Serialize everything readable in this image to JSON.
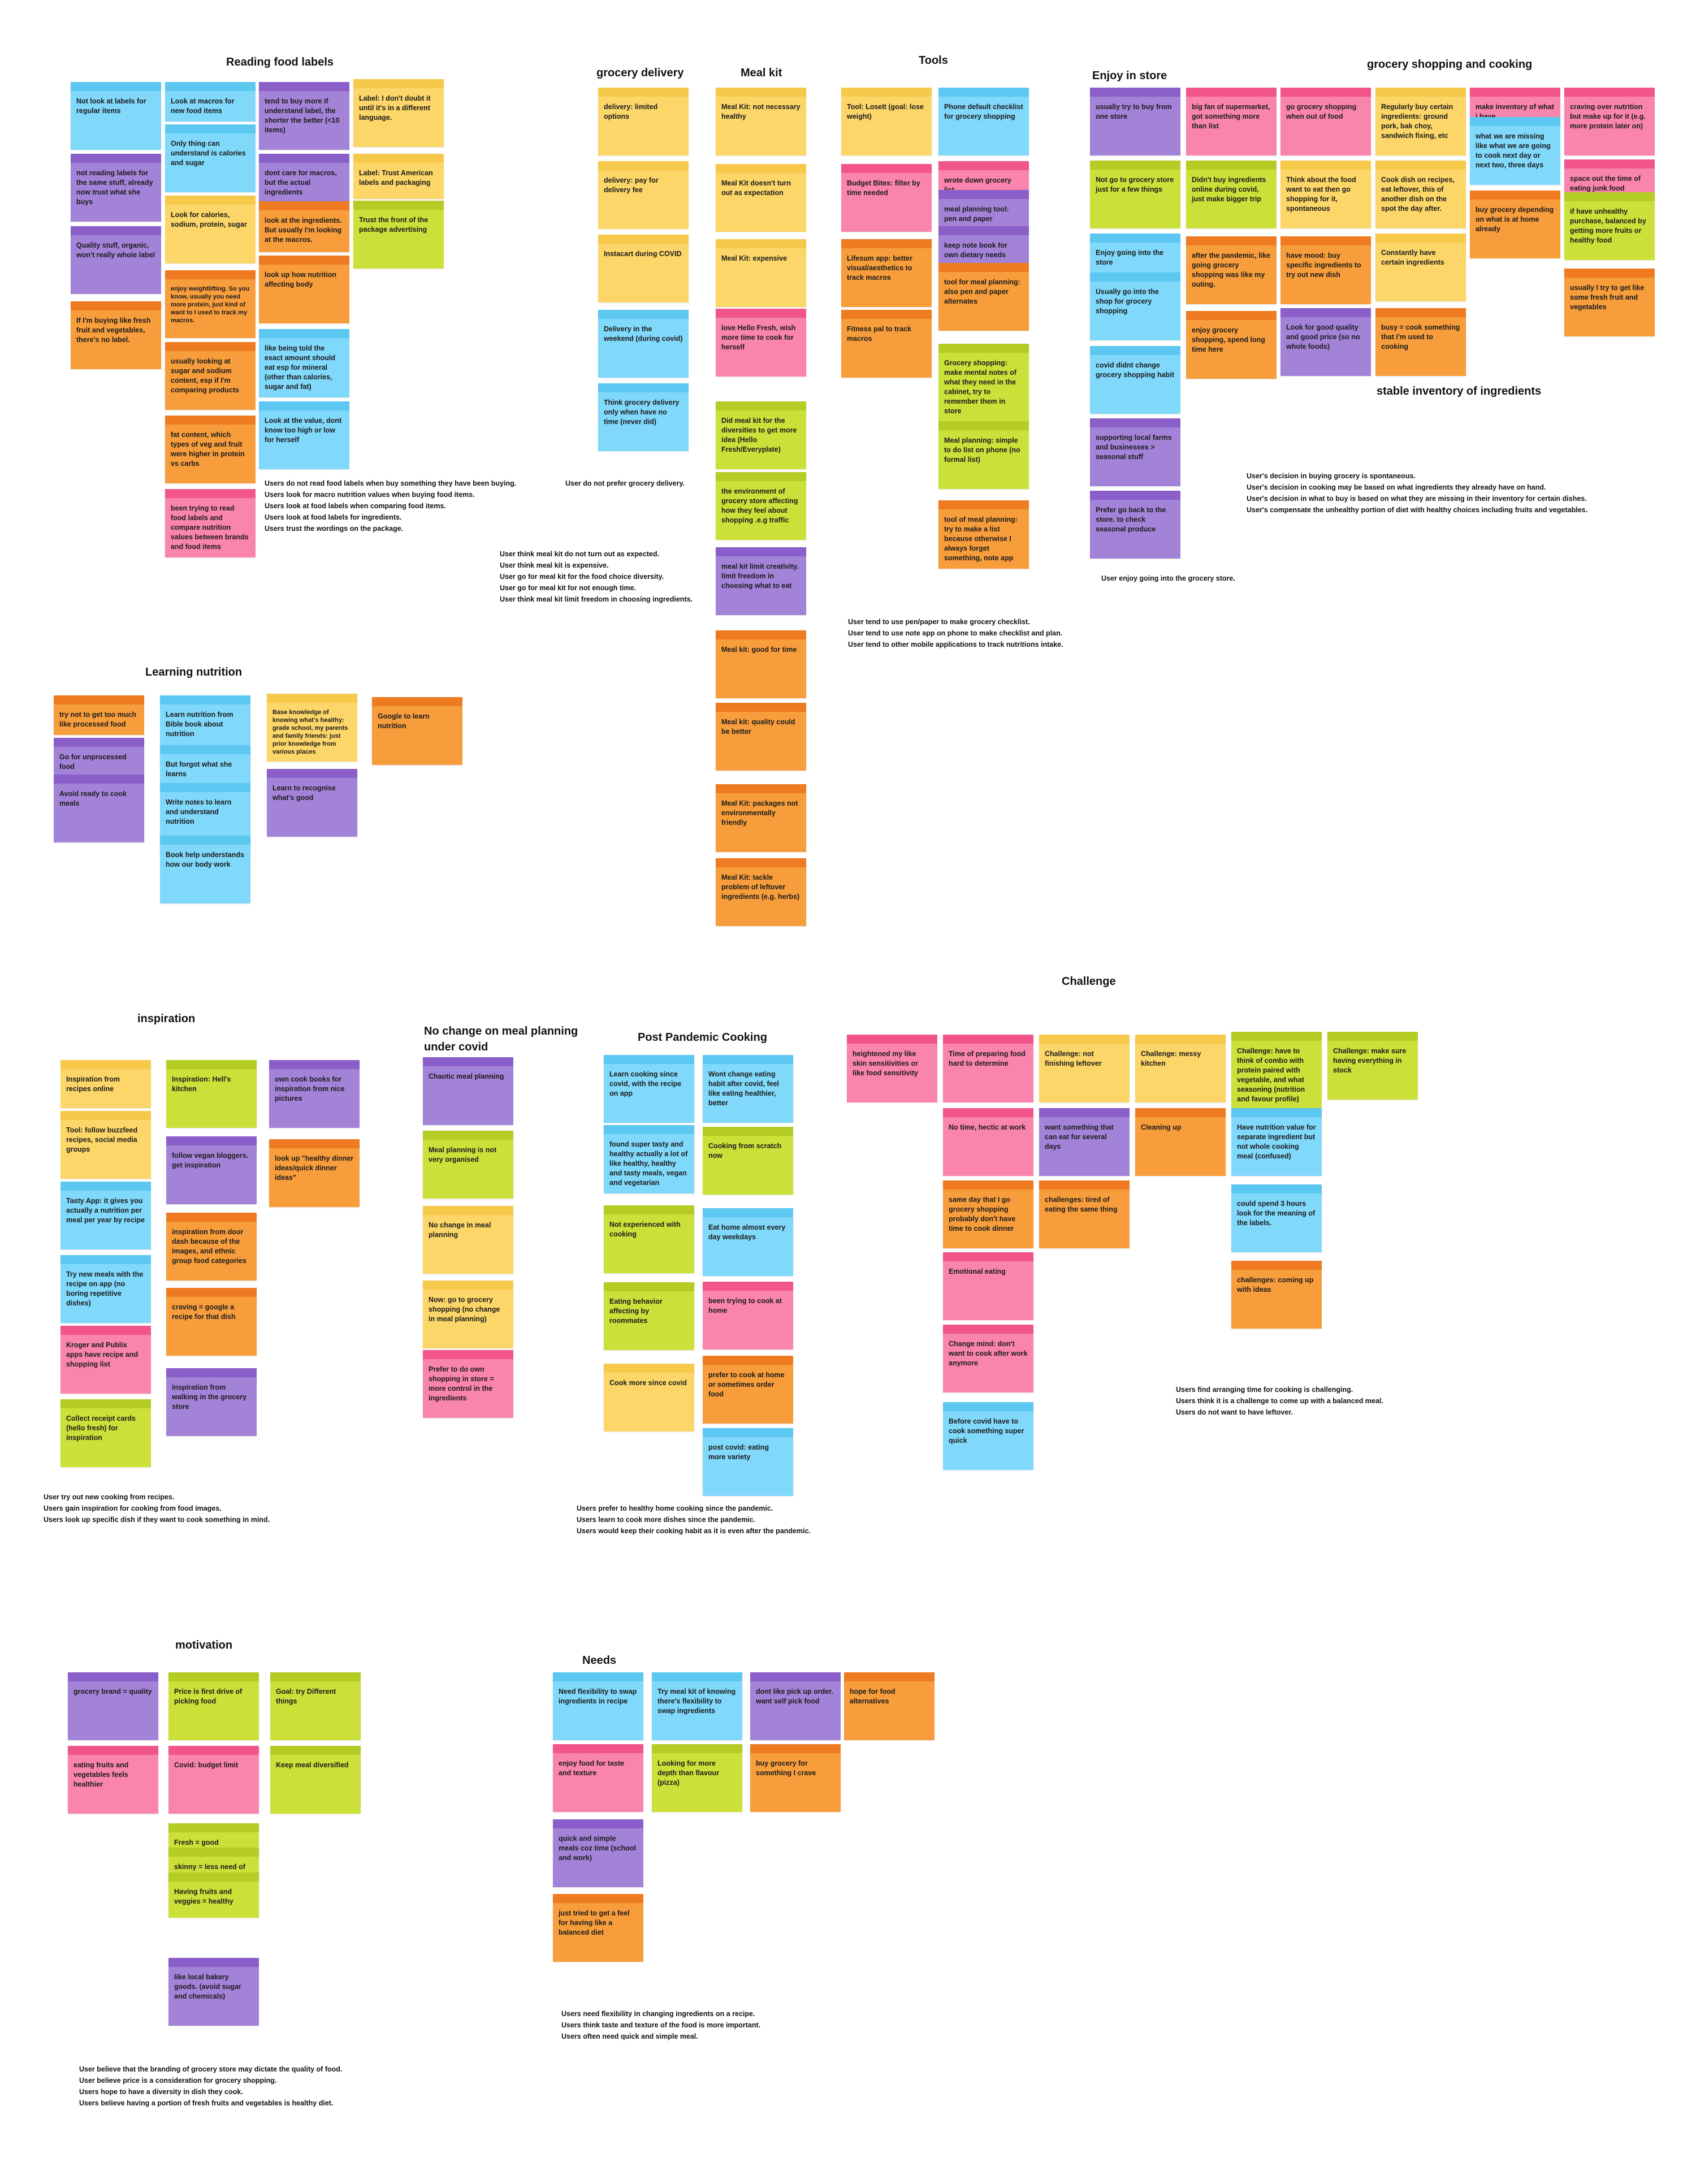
{
  "sections": {
    "reading_food_labels": "Reading food labels",
    "grocery_delivery": "grocery delivery",
    "meal_kit": "Meal kit",
    "tools": "Tools",
    "enjoy_in_store": "Enjoy in store",
    "grocery_shopping_and_cooking": "grocery shopping and cooking",
    "stable_inventory": "stable inventory of ingredients",
    "learning_nutrition": "Learning nutrition",
    "challenge": "Challenge",
    "inspiration": "inspiration",
    "no_change": "No change on meal planning under covid",
    "post_pandemic": "Post Pandemic Cooking",
    "motivation": "motivation",
    "needs": "Needs"
  },
  "summaries": {
    "reading": "Users do not read food labels when buy something they have been buying.\nUsers look for macro nutrition values when buying food items.\nUsers look at food labels when comparing food items.\nUsers look at food labels for ingredients.\nUsers trust the wordings on the package.",
    "delivery": "User do not prefer grocery delivery.",
    "mealkit": "User think meal kit do not turn out as expected.\nUser think meal kit is expensive.\nUser go for meal kit for the food choice diversity.\nUser go for meal kit for not enough time.\nUser think meal kit limit freedom in choosing ingredients.",
    "tools": "User tend to use pen/paper to make grocery checklist.\nUser tend to use note app on phone to make checklist and plan.\nUser tend to other mobile applications to track nutritions intake.",
    "enjoy": "User enjoy going into the grocery store.",
    "gsc": "User's decision in buying grocery is spontaneous.\nUser's decision in cooking may be based on what ingredients they already have on hand.\nUser's decision in what to buy is based on what they are missing in their inventory for certain dishes.\nUser's compensate the unhealthy portion of diet with healthy choices including fruits and vegetables.",
    "challenge": "Users find arranging time for cooking is challenging.\nUsers think it is a challenge to come up with a balanced meal.\nUsers do not want to have leftover.",
    "inspiration": "User try out new cooking from recipes.\nUsers gain inspiration for cooking from food images.\nUsers look up specific dish if they want to cook something in mind.",
    "post_pandemic": "Users prefer to healthy home cooking since the pandemic.\nUsers learn to cook more dishes since the pandemic.\nUsers would keep their cooking habit as it is even after the pandemic.",
    "motivation": "User believe that the branding of grocery store may dictate the quality of food.\nUser believe price is a consideration for grocery shopping.\nUsers hope to have a diversity in dish they cook.\nUsers believe having a portion of fresh fruits and vegetables is healthy diet.",
    "needs": "Users need flexibility in changing ingredients on a recipe.\nUsers think taste and texture of the food is more important.\nUsers often need quick and simple meal."
  },
  "notes": [
    {
      "color": "blue",
      "text": "Not look at labels for regular items"
    },
    {
      "color": "purple",
      "text": "not reading labels for the same stuff, already now trust what she buys"
    },
    {
      "color": "purple",
      "text": "Quality stuff, organic, won't really whole label"
    },
    {
      "color": "orange",
      "text": "If I'm buying like fresh fruit and vegetables, there's no label."
    },
    {
      "color": "blue",
      "text": "Look at macros for new food items"
    },
    {
      "color": "blue",
      "text": "Only thing can understand is calories and sugar"
    },
    {
      "color": "yellow",
      "text": "Look for calories, sodium, protein, sugar"
    },
    {
      "color": "orange",
      "text": "enjoy weightlifting. So you know, usually you need more protein, just kind of want to I used to track my macros."
    },
    {
      "color": "orange",
      "text": "usually looking at sugar and sodium content, esp if I'm comparing products"
    },
    {
      "color": "orange",
      "text": "fat content, which types of veg and fruit were higher in protein vs carbs"
    },
    {
      "color": "pink",
      "text": "been trying to read food labels and compare nutrition values between brands and food items"
    },
    {
      "color": "purple",
      "text": "tend to buy more if understand label, the shorter the better (<10 items)"
    },
    {
      "color": "purple",
      "text": "dont care for macros, but the actual ingredients"
    },
    {
      "color": "orange",
      "text": "look at the ingredients. But usually I'm looking at the macros."
    },
    {
      "color": "orange",
      "text": "look up how nutrition affecting body"
    },
    {
      "color": "blue",
      "text": "like being told the exact amount should eat esp for mineral (other than calories, sugar and fat)"
    },
    {
      "color": "blue",
      "text": "Look at the value, dont know too high or low for herself"
    },
    {
      "color": "yellow",
      "text": "Label:  I don't doubt it until it's in a different language."
    },
    {
      "color": "yellow",
      "text": "Label:  Trust American labels and packaging"
    },
    {
      "color": "green",
      "text": "Trust the front of the package advertising"
    },
    {
      "color": "yellow",
      "text": "delivery: limited options"
    },
    {
      "color": "yellow",
      "text": "delivery: pay for delivery fee"
    },
    {
      "color": "yellow",
      "text": "Instacart during COVID"
    },
    {
      "color": "blue",
      "text": "Delivery in the weekend (during covid)"
    },
    {
      "color": "blue",
      "text": "Think grocery delivery only when have no time (never did)"
    },
    {
      "color": "yellow",
      "text": "Meal Kit: not necessary healthy"
    },
    {
      "color": "yellow",
      "text": "Meal Kit doesn't turn out as expectation"
    },
    {
      "color": "yellow",
      "text": "Meal Kit: expensive"
    },
    {
      "color": "pink",
      "text": "love Hello Fresh, wish more time to cook for herself"
    },
    {
      "color": "green",
      "text": "Did meal kit for the diversities to get more idea  (Hello Fresh/Everyplate)"
    },
    {
      "color": "green",
      "text": "the environment of grocery store affecting how they feel about shopping .e.g traffic"
    },
    {
      "color": "purple",
      "text": "meal kit limit creativity. limit freedom in choosing what to eat"
    },
    {
      "color": "orange",
      "text": "Meal kit: good for time"
    },
    {
      "color": "orange",
      "text": "Meal kit: quality could be better"
    },
    {
      "color": "orange",
      "text": "Meal Kit: packages not environmentally friendly"
    },
    {
      "color": "orange",
      "text": "Meal Kit: tackle problem of leftover ingredients (e.g. herbs)"
    },
    {
      "color": "yellow",
      "text": "Tool: LoseIt (goal: lose weight)"
    },
    {
      "color": "pink",
      "text": "Budget Bites: filter by time needed"
    },
    {
      "color": "orange",
      "text": "Lifesum app: better visual/aesthetics to track macros"
    },
    {
      "color": "orange",
      "text": "Fitness pal to track macros"
    },
    {
      "color": "blue",
      "text": "Phone default checklist for grocery shopping"
    },
    {
      "color": "pink",
      "text": "wrote down grocery list"
    },
    {
      "color": "purple",
      "text": "meal planning tool: pen and paper"
    },
    {
      "color": "purple",
      "text": "keep note book for own dietary needs"
    },
    {
      "color": "orange",
      "text": "tool for meal planning: also pen and paper alternates"
    },
    {
      "color": "green",
      "text": "Grocery shopping: make mental notes of what they need in the cabinet, try to remember them in store"
    },
    {
      "color": "green",
      "text": "Meal planning: simple to do list on phone (no formal list)"
    },
    {
      "color": "orange",
      "text": "tool of meal planning:  try to make a list because otherwise I always forget something, note app"
    },
    {
      "color": "purple",
      "text": "usually try to buy from one store"
    },
    {
      "color": "green",
      "text": "Not go to grocery store just for a few things"
    },
    {
      "color": "blue",
      "text": "Enjoy going into the store"
    },
    {
      "color": "blue",
      "text": "Usually go into the shop for grocery shopping"
    },
    {
      "color": "blue",
      "text": "covid didnt change grocery shopping habit"
    },
    {
      "color": "purple",
      "text": "supporting local farms and businesses > seasonal stuff"
    },
    {
      "color": "purple",
      "text": "Prefer go back to the store. to check seasonal produce"
    },
    {
      "color": "pink",
      "text": "big fan of supermarket, got something more than list"
    },
    {
      "color": "green",
      "text": "Didn't buy ingredients online during covid, just make bigger trip"
    },
    {
      "color": "orange",
      "text": "after the pandemic, like going grocery shopping was like my outing."
    },
    {
      "color": "orange",
      "text": "enjoy grocery shopping, spend long time here"
    },
    {
      "color": "pink",
      "text": "go grocery shopping when out of food"
    },
    {
      "color": "yellow",
      "text": "Think about the food want to eat then go shopping for it, spontaneous"
    },
    {
      "color": "orange",
      "text": "have mood: buy specific ingredients to try out new dish"
    },
    {
      "color": "purple",
      "text": "Look for good quality and good price  (so no whole foods)"
    },
    {
      "color": "yellow",
      "text": "Regularly buy certain ingredients: ground pork, bak choy, sandwich fixing, etc"
    },
    {
      "color": "yellow",
      "text": "Cook dish on recipes, eat leftover, this of another dish on the spot the day after."
    },
    {
      "color": "yellow",
      "text": "Constantly have certain ingredients"
    },
    {
      "color": "orange",
      "text": "busy = cook something that i'm used to cooking"
    },
    {
      "color": "pink",
      "text": "make inventory of what i have"
    },
    {
      "color": "blue",
      "text": "what we are missing like what we are going to cook next day or next two, three days"
    },
    {
      "color": "orange",
      "text": "buy grocery depending on what is at home already"
    },
    {
      "color": "pink",
      "text": "craving over nutrition but make up for it (e.g. more protein later on)"
    },
    {
      "color": "pink",
      "text": "space out the time of eating junk food"
    },
    {
      "color": "green",
      "text": "if have unhealthy purchase, balanced by getting more fruits or healthy food"
    },
    {
      "color": "orange",
      "text": "usually I try to get like some fresh fruit and vegetables"
    },
    {
      "color": "orange",
      "text": "try not to get too much like processed food"
    },
    {
      "color": "purple",
      "text": "Go for unprocessed food"
    },
    {
      "color": "purple",
      "text": "Avoid ready to cook meals"
    },
    {
      "color": "blue",
      "text": "Learn nutrition from Bible book about nutrition"
    },
    {
      "color": "blue",
      "text": "But forgot what she learns"
    },
    {
      "color": "blue",
      "text": "Write notes to learn and understand nutrition"
    },
    {
      "color": "blue",
      "text": "Book help understands how our body work"
    },
    {
      "color": "yellow",
      "text": "Base knowledge of knowing what's healthy: grade school,  my parents and family friends:  just prior knowledge from various places"
    },
    {
      "color": "purple",
      "text": "Learn to recognise what's good"
    },
    {
      "color": "orange",
      "text": "Google to learn nutrition"
    },
    {
      "color": "pink",
      "text": "heightened my like skin sensitivities or like food sensitivity"
    },
    {
      "color": "pink",
      "text": "Time of preparing food hard to determine"
    },
    {
      "color": "pink",
      "text": "No time, hectic at work"
    },
    {
      "color": "orange",
      "text": "same day that I go grocery shopping probably don't have time to cook dinner"
    },
    {
      "color": "pink",
      "text": "Emotional eating"
    },
    {
      "color": "pink",
      "text": "Change mind: don't want to cook after work anymore"
    },
    {
      "color": "blue",
      "text": "Before covid have to cook something super quick"
    },
    {
      "color": "yellow",
      "text": "Challenge: not finishing leftover"
    },
    {
      "color": "purple",
      "text": "want something that can eat for several days"
    },
    {
      "color": "orange",
      "text": "challenges: tired of eating the same thing"
    },
    {
      "color": "yellow",
      "text": "Challenge: messy kitchen"
    },
    {
      "color": "orange",
      "text": "Cleaning up"
    },
    {
      "color": "green",
      "text": "Challenge: have to think of combo with protein paired with vegetable, and what seasoning (nutrition and favour profile)"
    },
    {
      "color": "blue",
      "text": "Have nutrition value for separate ingredient but not whole cooking meal (confused)"
    },
    {
      "color": "blue",
      "text": "could spend 3 hours look for the meaning of the labels."
    },
    {
      "color": "orange",
      "text": "challenges: coming up with ideas"
    },
    {
      "color": "green",
      "text": "Challenge: make sure having everything in stock"
    },
    {
      "color": "yellow",
      "text": "Inspiration from recipes online"
    },
    {
      "color": "yellow",
      "text": "Tool: follow buzzfeed recipes, social media groups"
    },
    {
      "color": "blue",
      "text": "Tasty App: it gives you actually a nutrition per meal per year by recipe"
    },
    {
      "color": "blue",
      "text": "Try new meals with the recipe on app (no boring repetitive dishes)"
    },
    {
      "color": "pink",
      "text": "Kroger and Publix apps have recipe and shopping list"
    },
    {
      "color": "green",
      "text": "Collect receipt cards (hello fresh) for inspiration"
    },
    {
      "color": "green",
      "text": "Inspiration: Hell's kitchen"
    },
    {
      "color": "purple",
      "text": "follow vegan bloggers. get inspiration"
    },
    {
      "color": "orange",
      "text": "inspiration from door dash because of the images, and ethnic group food categories"
    },
    {
      "color": "orange",
      "text": "craving = google a recipe for that dish"
    },
    {
      "color": "purple",
      "text": "inspiration from walking in the grocery store"
    },
    {
      "color": "purple",
      "text": "own cook books for inspiration from nice pictures"
    },
    {
      "color": "orange",
      "text": "look up \"healthy dinner ideas/quick dinner ideas\""
    },
    {
      "color": "purple",
      "text": "Chaotic meal planning"
    },
    {
      "color": "green",
      "text": "Meal planning is not very organised"
    },
    {
      "color": "yellow",
      "text": "No change in meal planning"
    },
    {
      "color": "yellow",
      "text": "Now: go to grocery shopping (no change in meal planning)"
    },
    {
      "color": "pink",
      "text": "Prefer to do own shopping in store = more control in the ingredients"
    },
    {
      "color": "blue",
      "text": "Learn cooking since covid, with the recipe on app"
    },
    {
      "color": "blue",
      "text": "found super tasty and healthy actually a lot of like healthy, healthy and tasty meals, vegan and vegetarian"
    },
    {
      "color": "green",
      "text": "Not experienced with cooking"
    },
    {
      "color": "green",
      "text": "Eating behavior affecting by roommates"
    },
    {
      "color": "yellow",
      "text": "Cook more since covid"
    },
    {
      "color": "blue",
      "text": "Wont change eating habit after covid, feel like eating healthier, better"
    },
    {
      "color": "green",
      "text": "Cooking from scratch now"
    },
    {
      "color": "blue",
      "text": "Eat home almost every day weekdays"
    },
    {
      "color": "pink",
      "text": "been trying to cook at home"
    },
    {
      "color": "orange",
      "text": "prefer to cook at home or sometimes order food"
    },
    {
      "color": "blue",
      "text": "post covid: eating more variety"
    },
    {
      "color": "purple",
      "text": "grocery brand = quality"
    },
    {
      "color": "pink",
      "text": "eating fruits and vegetables feels healthier"
    },
    {
      "color": "green",
      "text": "Price is first drive of picking food"
    },
    {
      "color": "pink",
      "text": "Covid: budget limit"
    },
    {
      "color": "green",
      "text": "Fresh = good"
    },
    {
      "color": "green",
      "text": "skinny = less need of caring health"
    },
    {
      "color": "green",
      "text": "Having fruits and veggies = healthy"
    },
    {
      "color": "purple",
      "text": "like local bakery goods. (avoid sugar and chemicals)"
    },
    {
      "color": "green",
      "text": "Goal: try Different things"
    },
    {
      "color": "green",
      "text": "Keep meal diversified"
    },
    {
      "color": "blue",
      "text": "Need flexibility to swap ingredients in recipe"
    },
    {
      "color": "pink",
      "text": "enjoy food for taste and texture"
    },
    {
      "color": "purple",
      "text": "quick and simple meals coz time (school and work)"
    },
    {
      "color": "orange",
      "text": "just tried to get a feel for having like a balanced diet"
    },
    {
      "color": "blue",
      "text": "Try meal kit of knowing there's flexibility to swap ingredients"
    },
    {
      "color": "green",
      "text": "Looking for more depth than flavour (pizza)"
    },
    {
      "color": "purple",
      "text": "dont like pick up order. want self pick food"
    },
    {
      "color": "orange",
      "text": "buy grocery for something I crave"
    },
    {
      "color": "orange",
      "text": "hope for food alternatives"
    }
  ]
}
